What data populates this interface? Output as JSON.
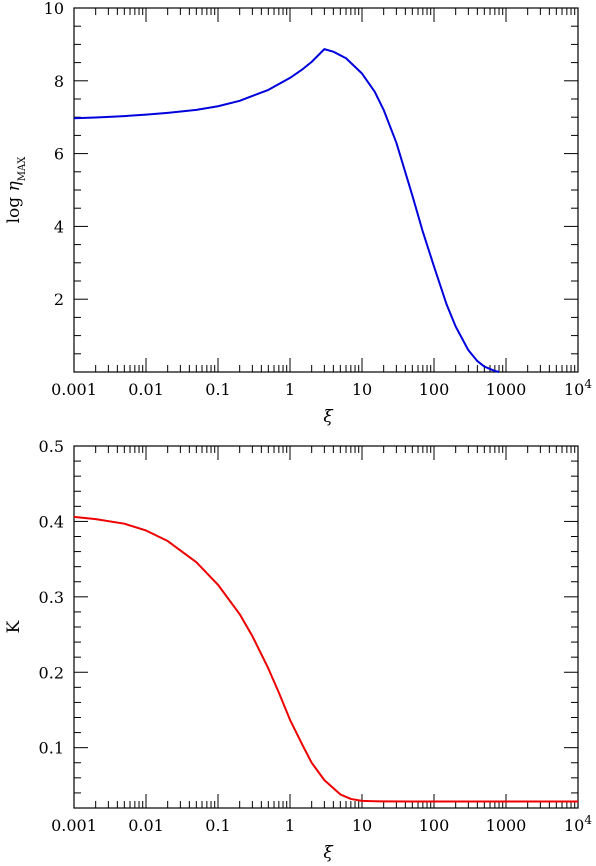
{
  "chart_data": [
    {
      "type": "line",
      "title": "",
      "xlabel": "ξ",
      "ylabel": "log η",
      "ylabel_subscript": "MAX",
      "xscale": "log",
      "xlim": [
        0.001,
        10000
      ],
      "ylim": [
        0,
        10
      ],
      "xticks": [
        {
          "value": 0.001,
          "label": "0.001"
        },
        {
          "value": 0.01,
          "label": "0.01"
        },
        {
          "value": 0.1,
          "label": "0.1"
        },
        {
          "value": 1,
          "label": "1"
        },
        {
          "value": 10,
          "label": "10"
        },
        {
          "value": 100,
          "label": "100"
        },
        {
          "value": 1000,
          "label": "1000"
        },
        {
          "value": 10000,
          "label": "10",
          "sup": "4"
        }
      ],
      "yticks": [
        {
          "value": 2,
          "label": "2"
        },
        {
          "value": 4,
          "label": "4"
        },
        {
          "value": 6,
          "label": "6"
        },
        {
          "value": 8,
          "label": "8"
        },
        {
          "value": 10,
          "label": "10"
        }
      ],
      "yminor_step": 0.5,
      "grid": false,
      "series": [
        {
          "color": "#0000dd",
          "x": [
            0.001,
            0.002,
            0.005,
            0.01,
            0.02,
            0.05,
            0.1,
            0.2,
            0.5,
            1,
            1.5,
            2,
            3,
            4,
            6,
            10,
            15,
            20,
            30,
            50,
            70,
            100,
            150,
            200,
            300,
            400,
            500,
            700,
            800
          ],
          "y": [
            6.97,
            6.99,
            7.03,
            7.07,
            7.12,
            7.2,
            7.3,
            7.45,
            7.75,
            8.08,
            8.32,
            8.52,
            8.87,
            8.8,
            8.62,
            8.2,
            7.7,
            7.2,
            6.3,
            4.85,
            3.85,
            2.9,
            1.85,
            1.25,
            0.6,
            0.3,
            0.15,
            0.03,
            0.0
          ]
        }
      ]
    },
    {
      "type": "line",
      "title": "",
      "xlabel": "ξ",
      "ylabel": "K",
      "xscale": "log",
      "xlim": [
        0.001,
        10000
      ],
      "ylim": [
        0.02,
        0.5
      ],
      "xticks": [
        {
          "value": 0.001,
          "label": "0.001"
        },
        {
          "value": 0.01,
          "label": "0.01"
        },
        {
          "value": 0.1,
          "label": "0.1"
        },
        {
          "value": 1,
          "label": "1"
        },
        {
          "value": 10,
          "label": "10"
        },
        {
          "value": 100,
          "label": "100"
        },
        {
          "value": 1000,
          "label": "1000"
        },
        {
          "value": 10000,
          "label": "10",
          "sup": "4"
        }
      ],
      "yticks": [
        {
          "value": 0.1,
          "label": "0.1"
        },
        {
          "value": 0.2,
          "label": "0.2"
        },
        {
          "value": 0.3,
          "label": "0.3"
        },
        {
          "value": 0.4,
          "label": "0.4"
        },
        {
          "value": 0.5,
          "label": "0.5"
        }
      ],
      "yminor_step": 0.02,
      "grid": false,
      "series": [
        {
          "color": "#ee0000",
          "x": [
            0.001,
            0.002,
            0.005,
            0.01,
            0.02,
            0.05,
            0.1,
            0.2,
            0.3,
            0.5,
            0.7,
            1,
            1.5,
            2,
            3,
            5,
            7,
            10,
            15,
            20,
            50,
            100,
            1000,
            10000
          ],
          "y": [
            0.406,
            0.403,
            0.397,
            0.388,
            0.374,
            0.346,
            0.316,
            0.277,
            0.248,
            0.205,
            0.173,
            0.137,
            0.103,
            0.08,
            0.057,
            0.038,
            0.032,
            0.0295,
            0.029,
            0.0288,
            0.0287,
            0.0287,
            0.0286,
            0.0286
          ]
        }
      ]
    }
  ]
}
